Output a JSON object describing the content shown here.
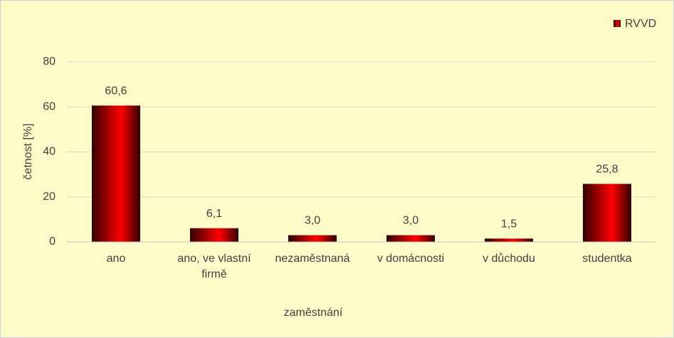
{
  "chart_data": {
    "type": "bar",
    "x_label": "zaměstnání",
    "y_label": "četnost [%]",
    "categories": [
      "ano",
      "ano, ve vlastní firmě",
      "nezaměstnaná",
      "v domácnosti",
      "v důchodu",
      "studentka"
    ],
    "series": [
      {
        "name": "RVVD",
        "color": "#ff0000",
        "values": [
          60.6,
          6.1,
          3.0,
          3.0,
          1.5,
          25.8
        ],
        "value_labels": [
          "60,6",
          "6,1",
          "3,0",
          "3,0",
          "1,5",
          "25,8"
        ]
      }
    ],
    "ylim": [
      0,
      80
    ],
    "yticks": [
      0,
      20,
      40,
      60,
      80
    ],
    "grid": true,
    "legend": "top-right"
  }
}
